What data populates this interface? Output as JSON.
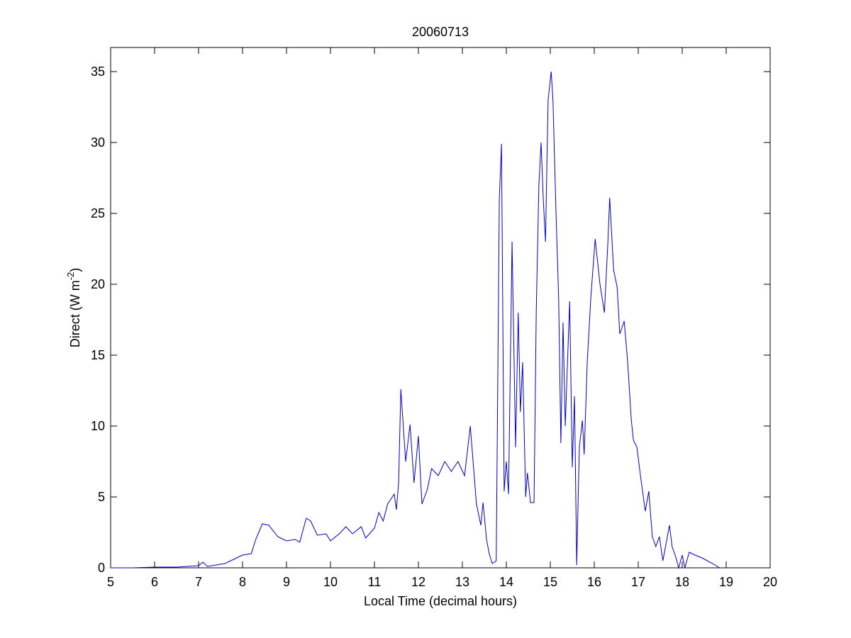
{
  "chart_data": {
    "type": "line",
    "title": "20060713",
    "xlabel": "Local Time (decimal hours)",
    "ylabel": {
      "text": "Direct (W m",
      "superscript": "-2",
      "suffix": ")"
    },
    "xlim": [
      5,
      20
    ],
    "xticks": [
      5,
      6,
      7,
      8,
      9,
      10,
      11,
      12,
      13,
      14,
      15,
      16,
      17,
      18,
      19,
      20
    ],
    "ylim": [
      0,
      36.7
    ],
    "yticks": [
      0,
      5,
      10,
      15,
      20,
      25,
      30,
      35
    ],
    "grid": false,
    "series": [
      {
        "color": "#0000c8",
        "x": [
          5.0,
          5.5,
          6.0,
          6.5,
          7.0,
          7.1,
          7.2,
          7.4,
          7.6,
          7.8,
          8.0,
          8.2,
          8.3,
          8.45,
          8.6,
          8.8,
          9.0,
          9.2,
          9.3,
          9.45,
          9.55,
          9.7,
          9.9,
          10.0,
          10.2,
          10.35,
          10.5,
          10.7,
          10.8,
          11.0,
          11.1,
          11.2,
          11.3,
          11.45,
          11.5,
          11.55,
          11.6,
          11.71,
          11.81,
          11.9,
          12.0,
          12.08,
          12.2,
          12.3,
          12.45,
          12.6,
          12.75,
          12.9,
          13.05,
          13.18,
          13.32,
          13.42,
          13.47,
          13.55,
          13.61,
          13.68,
          13.77,
          13.84,
          13.89,
          13.95,
          14.0,
          14.05,
          14.13,
          14.21,
          14.27,
          14.32,
          14.37,
          14.44,
          14.48,
          14.55,
          14.63,
          14.68,
          14.74,
          14.79,
          14.84,
          14.89,
          14.95,
          15.02,
          15.06,
          15.13,
          15.19,
          15.24,
          15.29,
          15.34,
          15.44,
          15.5,
          15.55,
          15.6,
          15.66,
          15.73,
          15.77,
          15.84,
          15.92,
          16.02,
          16.13,
          16.23,
          16.31,
          16.35,
          16.44,
          16.52,
          16.58,
          16.68,
          16.76,
          16.84,
          16.89,
          16.97,
          17.05,
          17.16,
          17.24,
          17.32,
          17.4,
          17.48,
          17.56,
          17.65,
          17.71,
          17.77,
          17.85,
          17.92,
          18.0,
          18.06,
          18.16,
          18.29,
          18.45,
          18.69,
          18.85
        ],
        "values": [
          0,
          0,
          0.05,
          0.05,
          0.15,
          0.4,
          0.1,
          0.2,
          0.3,
          0.6,
          0.9,
          1.0,
          2.0,
          3.1,
          3.0,
          2.2,
          1.9,
          2.0,
          1.8,
          3.5,
          3.3,
          2.3,
          2.4,
          1.9,
          2.4,
          2.9,
          2.4,
          2.9,
          2.1,
          2.8,
          3.9,
          3.3,
          4.5,
          5.2,
          4.1,
          6.0,
          12.6,
          7.5,
          10.1,
          6.0,
          9.3,
          4.5,
          5.5,
          7.0,
          6.5,
          7.5,
          6.8,
          7.5,
          6.5,
          10.0,
          4.5,
          3.0,
          4.6,
          2.0,
          1.0,
          0.3,
          0.5,
          26,
          29.9,
          5.4,
          7.5,
          5.2,
          23.0,
          8.5,
          18.0,
          11,
          14.5,
          5.0,
          6.7,
          4.6,
          4.6,
          18,
          27,
          30.0,
          26,
          23,
          33,
          35,
          33,
          25,
          19,
          8.8,
          17.3,
          10.0,
          18.8,
          7.1,
          12.1,
          0.2,
          8.5,
          10.4,
          8.0,
          14.5,
          19,
          23.2,
          20,
          18,
          23,
          26.1,
          21,
          19.8,
          16.5,
          17.4,
          14.5,
          10.5,
          9.0,
          8.5,
          6.5,
          4.0,
          5.4,
          2.2,
          1.5,
          2.2,
          0.5,
          2.0,
          3.0,
          1.5,
          0.8,
          0.0,
          0.9,
          0.0,
          1.1,
          0.9,
          0.7,
          0.3,
          0.0
        ]
      }
    ]
  }
}
